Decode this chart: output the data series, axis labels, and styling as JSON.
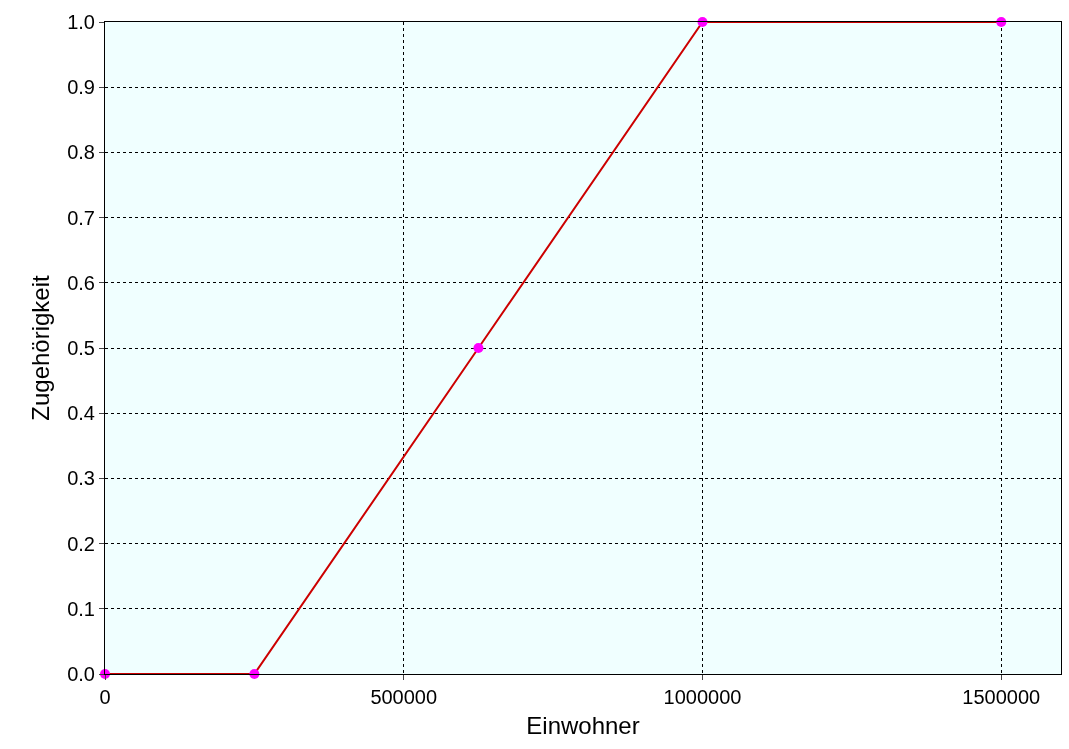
{
  "chart_data": {
    "type": "line",
    "xlabel": "Einwohner",
    "ylabel": "Zugehörigkeit",
    "x": [
      0,
      250000,
      625000,
      1000000,
      1500000
    ],
    "series": [
      {
        "color": "#cc0000",
        "values": [
          0,
          0,
          0.5,
          1,
          1
        ]
      }
    ],
    "marker": "circle",
    "line_style": "solid",
    "xlim": [
      0,
      1600000
    ],
    "xticks": [
      0,
      500000,
      1000000,
      1500000
    ],
    "ylim": [
      0,
      1
    ],
    "yticks": [
      {
        "value": 0,
        "label": "0.0"
      },
      {
        "value": 0.1,
        "label": "0.1"
      },
      {
        "value": 0.2,
        "label": "0.2"
      },
      {
        "value": 0.3,
        "label": "0.3"
      },
      {
        "value": 0.4,
        "label": "0.4"
      },
      {
        "value": 0.5,
        "label": "0.5"
      },
      {
        "value": 0.6,
        "label": "0.6"
      },
      {
        "value": 0.7,
        "label": "0.7"
      },
      {
        "value": 0.8,
        "label": "0.8"
      },
      {
        "value": 0.9,
        "label": "0.9"
      },
      {
        "value": 1,
        "label": "1.0"
      }
    ],
    "grid": true
  }
}
